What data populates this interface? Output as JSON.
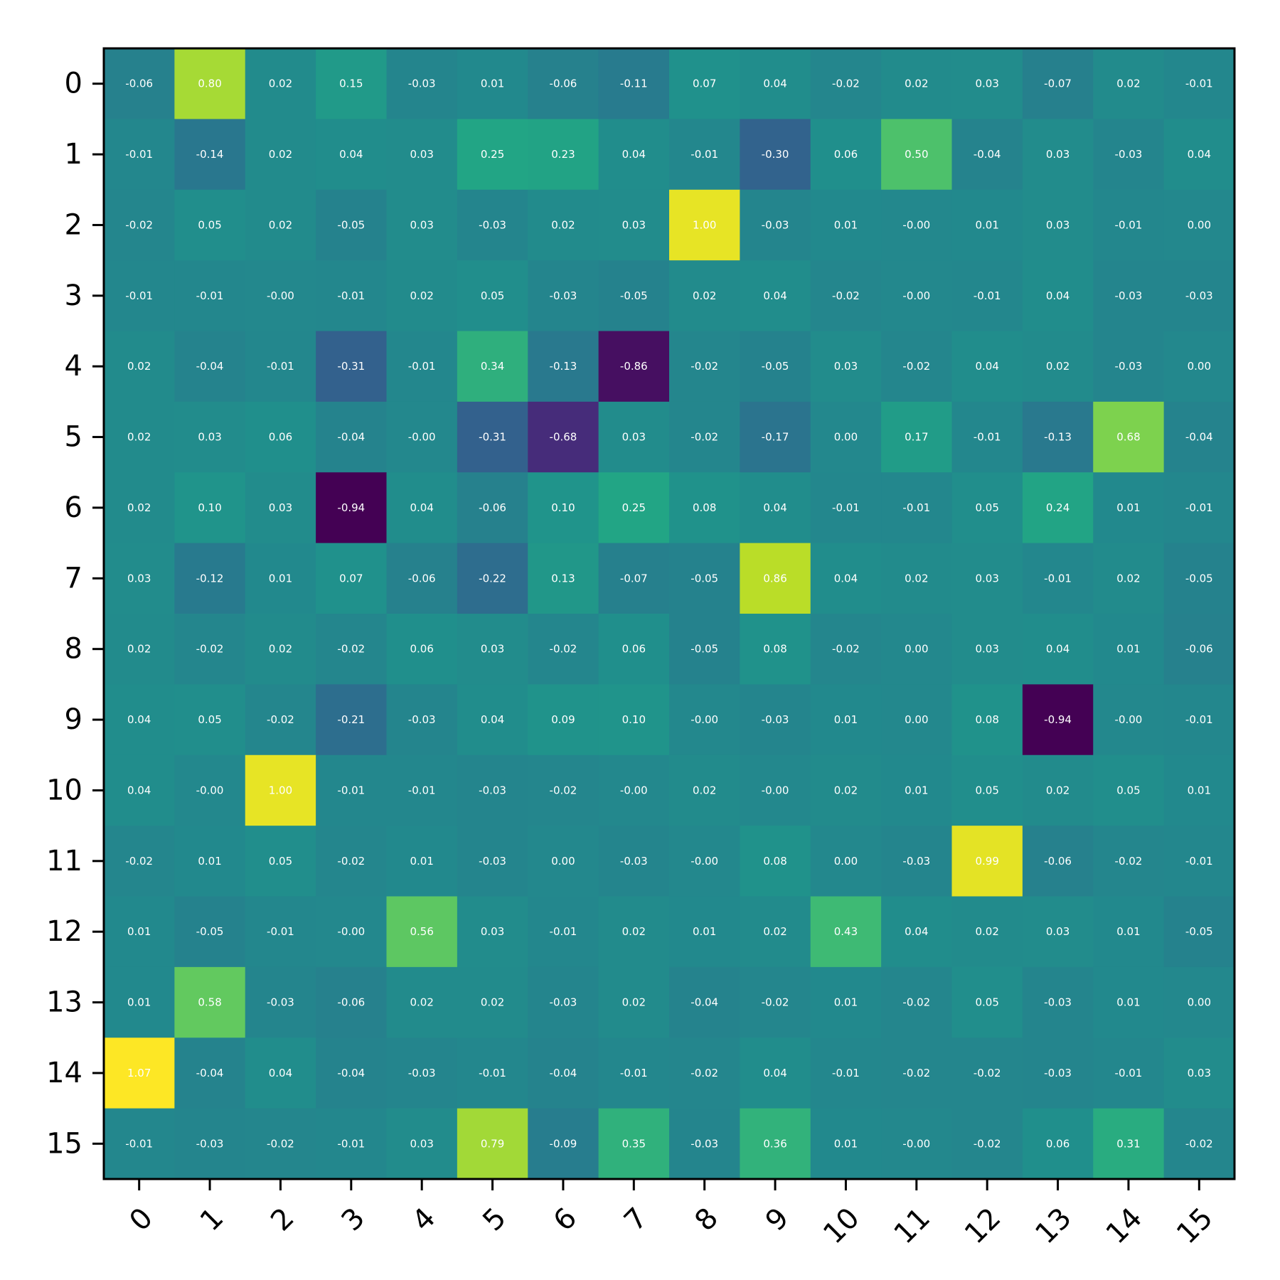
{
  "chart_data": {
    "type": "heatmap",
    "title": "",
    "xlabel": "",
    "ylabel": "",
    "colormap": "viridis",
    "value_range": [
      -0.94,
      1.07
    ],
    "x_ticks": [
      "0",
      "1",
      "2",
      "3",
      "4",
      "5",
      "6",
      "7",
      "8",
      "9",
      "10",
      "11",
      "12",
      "13",
      "14",
      "15"
    ],
    "y_ticks": [
      "0",
      "1",
      "2",
      "3",
      "4",
      "5",
      "6",
      "7",
      "8",
      "9",
      "10",
      "11",
      "12",
      "13",
      "14",
      "15"
    ],
    "values": [
      [
        -0.06,
        0.8,
        0.02,
        0.15,
        -0.03,
        0.01,
        -0.06,
        -0.11,
        0.07,
        0.04,
        -0.02,
        0.02,
        0.03,
        -0.07,
        0.02,
        -0.01
      ],
      [
        -0.01,
        -0.14,
        0.02,
        0.04,
        0.03,
        0.25,
        0.23,
        0.04,
        -0.01,
        -0.3,
        0.06,
        0.5,
        -0.04,
        0.03,
        -0.03,
        0.04
      ],
      [
        -0.02,
        0.05,
        0.02,
        -0.05,
        0.03,
        -0.03,
        0.02,
        0.03,
        1.0,
        -0.03,
        0.01,
        -0.0,
        0.01,
        0.03,
        -0.01,
        0.0
      ],
      [
        -0.01,
        -0.01,
        -0.0,
        -0.01,
        0.02,
        0.05,
        -0.03,
        -0.05,
        0.02,
        0.04,
        -0.02,
        -0.0,
        -0.01,
        0.04,
        -0.03,
        -0.03
      ],
      [
        0.02,
        -0.04,
        -0.01,
        -0.31,
        -0.01,
        0.34,
        -0.13,
        -0.86,
        -0.02,
        -0.05,
        0.03,
        -0.02,
        0.04,
        0.02,
        -0.03,
        0.0
      ],
      [
        0.02,
        0.03,
        0.06,
        -0.04,
        -0.0,
        -0.31,
        -0.68,
        0.03,
        -0.02,
        -0.17,
        0.0,
        0.17,
        -0.01,
        -0.13,
        0.68,
        -0.04
      ],
      [
        0.02,
        0.1,
        0.03,
        -0.94,
        0.04,
        -0.06,
        0.1,
        0.25,
        0.08,
        0.04,
        -0.01,
        -0.01,
        0.05,
        0.24,
        0.01,
        -0.01
      ],
      [
        0.03,
        -0.12,
        0.01,
        0.07,
        -0.06,
        -0.22,
        0.13,
        -0.07,
        -0.05,
        0.86,
        0.04,
        0.02,
        0.03,
        -0.01,
        0.02,
        -0.05
      ],
      [
        0.02,
        -0.02,
        0.02,
        -0.02,
        0.06,
        0.03,
        -0.02,
        0.06,
        -0.05,
        0.08,
        -0.02,
        0.0,
        0.03,
        0.04,
        0.01,
        -0.06
      ],
      [
        0.04,
        0.05,
        -0.02,
        -0.21,
        -0.03,
        0.04,
        0.09,
        0.1,
        -0.0,
        -0.03,
        0.01,
        0.0,
        0.08,
        -0.94,
        -0.0,
        -0.01
      ],
      [
        0.04,
        -0.0,
        1.0,
        -0.01,
        -0.01,
        -0.03,
        -0.02,
        -0.0,
        0.02,
        -0.0,
        0.02,
        0.01,
        0.05,
        0.02,
        0.05,
        0.01
      ],
      [
        -0.02,
        0.01,
        0.05,
        -0.02,
        0.01,
        -0.03,
        0.0,
        -0.03,
        -0.0,
        0.08,
        0.0,
        -0.03,
        0.99,
        -0.06,
        -0.02,
        -0.01
      ],
      [
        0.01,
        -0.05,
        -0.01,
        -0.0,
        0.56,
        0.03,
        -0.01,
        0.02,
        0.01,
        0.02,
        0.43,
        0.04,
        0.02,
        0.03,
        0.01,
        -0.05
      ],
      [
        0.01,
        0.58,
        -0.03,
        -0.06,
        0.02,
        0.02,
        -0.03,
        0.02,
        -0.04,
        -0.02,
        0.01,
        -0.02,
        0.05,
        -0.03,
        0.01,
        0.0
      ],
      [
        1.07,
        -0.04,
        0.04,
        -0.04,
        -0.03,
        -0.01,
        -0.04,
        -0.01,
        -0.02,
        0.04,
        -0.01,
        -0.02,
        -0.02,
        -0.03,
        -0.01,
        0.03
      ],
      [
        -0.01,
        -0.03,
        -0.02,
        -0.01,
        0.03,
        0.79,
        -0.09,
        0.35,
        -0.03,
        0.36,
        0.01,
        -0.0,
        -0.02,
        0.06,
        0.31,
        -0.02
      ]
    ],
    "value_format": "2 decimals",
    "grid": false,
    "legend": "none"
  }
}
